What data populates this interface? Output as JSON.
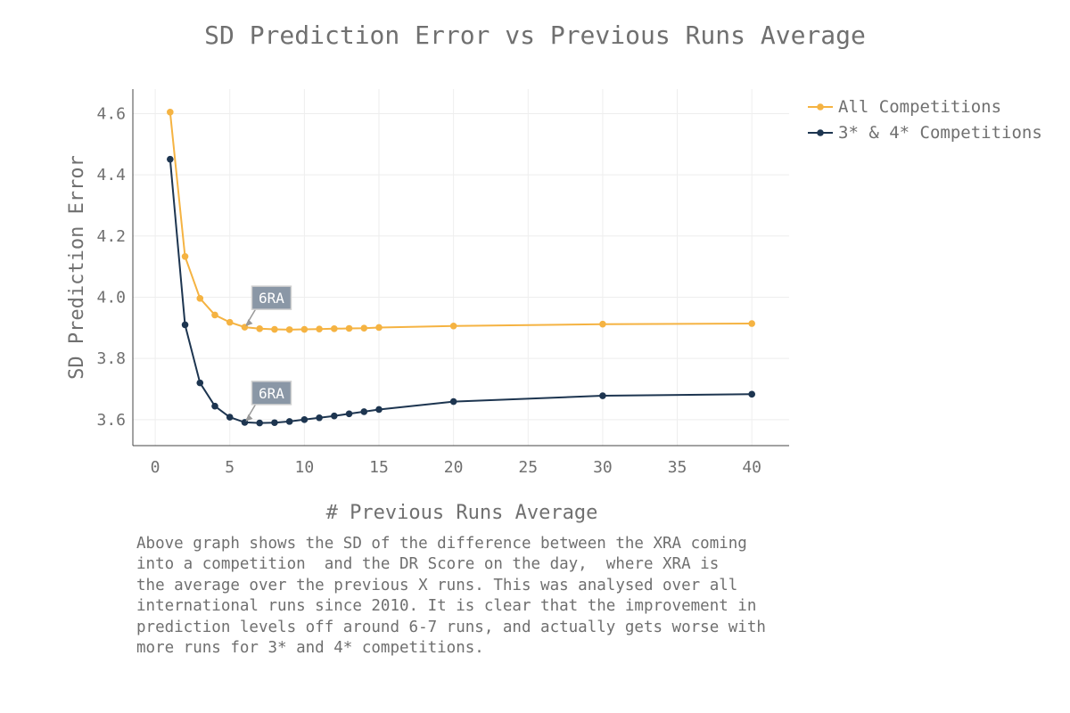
{
  "chart_data": {
    "type": "line",
    "title": "SD Prediction Error vs Previous Runs Average",
    "xlabel": "# Previous Runs Average",
    "ylabel": "SD Prediction Error",
    "xlim": [
      -1.5,
      42.5
    ],
    "ylim": [
      3.515,
      4.68
    ],
    "x_ticks": [
      0,
      5,
      10,
      15,
      20,
      25,
      30,
      35,
      40
    ],
    "x_tick_labels": [
      "0",
      "5",
      "10",
      "15",
      "20",
      "25",
      "30",
      "35",
      "40"
    ],
    "y_ticks": [
      3.6,
      3.8,
      4.0,
      4.2,
      4.4,
      4.6
    ],
    "y_tick_labels": [
      "3.6",
      "3.8",
      "4.0",
      "4.2",
      "4.4",
      "4.6"
    ],
    "grid": true,
    "legend_position": "top-right outside",
    "x": [
      1,
      2,
      3,
      4,
      5,
      6,
      7,
      8,
      9,
      10,
      11,
      12,
      13,
      14,
      15,
      20,
      30,
      40
    ],
    "series": [
      {
        "name": "All Competitions",
        "color": "#f5b342",
        "values": [
          4.605,
          4.133,
          3.996,
          3.942,
          3.918,
          3.902,
          3.897,
          3.895,
          3.894,
          3.895,
          3.896,
          3.897,
          3.898,
          3.899,
          3.901,
          3.906,
          3.912,
          3.914
        ]
      },
      {
        "name": "3* & 4* Competitions",
        "color": "#1d3550",
        "values": [
          4.451,
          3.91,
          3.72,
          3.644,
          3.608,
          3.591,
          3.589,
          3.59,
          3.594,
          3.6,
          3.606,
          3.612,
          3.619,
          3.626,
          3.633,
          3.659,
          3.678,
          3.683
        ]
      }
    ],
    "annotations": [
      {
        "text": "6RA",
        "x": 6,
        "y": 3.902,
        "series": 0
      },
      {
        "text": "6RA",
        "x": 6,
        "y": 3.591,
        "series": 1
      }
    ]
  },
  "note": "Above graph shows the SD of the difference between the XRA coming\ninto a competition  and the DR Score on the day,  where XRA is\nthe average over the previous X runs. This was analysed over all\ninternational runs since 2010. It is clear that the improvement in\nprediction levels off around 6-7 runs, and actually gets worse with\nmore runs for 3* and 4* competitions."
}
